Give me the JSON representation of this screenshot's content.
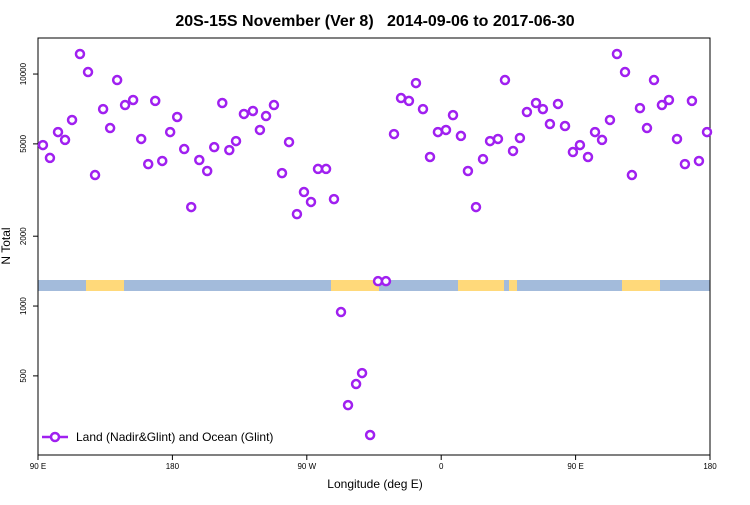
{
  "chart_data": {
    "type": "scatter",
    "title": "20S-15S November (Ver 8)   2014-09-06 to 2017-06-30",
    "x_label": "Longitude (deg E)",
    "y_label": "N Total",
    "yscale": "log",
    "grid": false,
    "legend": "bottom-left",
    "xlim": [
      90,
      540
    ],
    "ylim": [
      228,
      14300
    ],
    "xticks": [
      {
        "value": 90,
        "label": "90 E"
      },
      {
        "value": 180,
        "label": "180"
      },
      {
        "value": 270,
        "label": "90 W"
      },
      {
        "value": 360,
        "label": "0"
      },
      {
        "value": 450,
        "label": "90 E"
      },
      {
        "value": 540,
        "label": "180"
      }
    ],
    "yticks": [
      500,
      1000,
      2000,
      5000,
      10000
    ],
    "x": [
      93.3,
      98.0,
      103.4,
      108.1,
      112.8,
      118.1,
      123.5,
      128.2,
      133.6,
      138.3,
      143.0,
      148.3,
      153.7,
      159.1,
      163.8,
      168.5,
      173.2,
      178.5,
      183.2,
      187.9,
      192.6,
      198.0,
      203.3,
      208.0,
      213.4,
      218.1,
      222.6,
      227.9,
      233.9,
      238.6,
      242.7,
      248.0,
      253.4,
      258.1,
      263.4,
      268.1,
      272.8,
      277.5,
      282.9,
      288.2,
      292.9,
      297.6,
      303.0,
      307.0,
      312.4,
      317.7,
      323.0,
      328.4,
      333.1,
      338.4,
      343.1,
      347.8,
      352.5,
      357.8,
      363.2,
      367.9,
      373.2,
      377.9,
      383.3,
      388.0,
      392.7,
      398.0,
      402.7,
      408.1,
      412.7,
      417.4,
      423.5,
      428.1,
      432.8,
      438.2,
      442.9,
      448.2,
      452.9,
      458.3,
      463.0,
      467.7,
      473.0,
      477.7,
      483.1,
      487.7,
      493.1,
      497.8,
      502.5,
      507.8,
      512.5,
      517.9,
      523.2,
      527.9,
      532.6,
      538.0
    ],
    "series": [
      {
        "name": "Land (Nadir&Glint) and Ocean (Glint)",
        "color": "#a020f0",
        "values": [
          4940,
          4350,
          5620,
          5200,
          6340,
          12200,
          10200,
          3670,
          7060,
          5850,
          9420,
          7350,
          7730,
          5250,
          4090,
          7660,
          4220,
          5620,
          6530,
          4750,
          2670,
          4260,
          3820,
          4840,
          7500,
          4700,
          5140,
          6730,
          6930,
          5740,
          6590,
          7350,
          3740,
          5090,
          2490,
          3100,
          2810,
          3900,
          3900,
          2890,
          942,
          374,
          461,
          514,
          278,
          1280,
          1280,
          5510,
          7880,
          7660,
          9140,
          7060,
          4390,
          5620,
          5740,
          6650,
          5410,
          3820,
          2670,
          4300,
          5140,
          5250,
          9420,
          4660,
          5300,
          6860,
          7500,
          7060,
          6090,
          7430,
          5970,
          4610,
          4940,
          4390,
          5620,
          5200,
          6340,
          12200,
          10200,
          3670,
          7130,
          5850,
          9420,
          7350,
          7730,
          5250,
          4090,
          7660,
          4220,
          5620
        ]
      }
    ]
  }
}
